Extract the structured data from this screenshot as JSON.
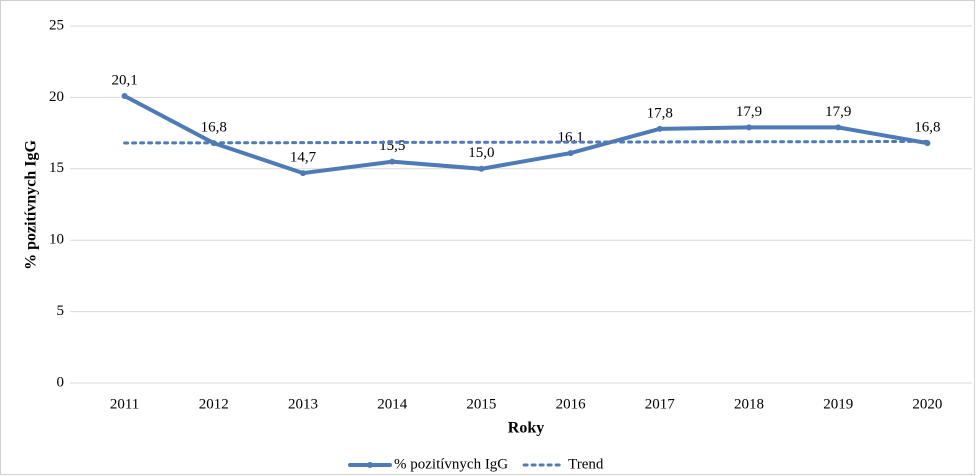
{
  "chart_data": {
    "type": "line",
    "categories": [
      "2011",
      "2012",
      "2013",
      "2014",
      "2015",
      "2016",
      "2017",
      "2018",
      "2019",
      "2020"
    ],
    "series": [
      {
        "name": "% pozitívnych IgG",
        "color": "#4e7ab5",
        "style": "solid",
        "values": [
          20.1,
          16.8,
          14.7,
          15.5,
          15.0,
          16.1,
          17.8,
          17.9,
          17.9,
          16.8
        ],
        "value_labels": [
          "20,1",
          "16,8",
          "14,7",
          "15,5",
          "15,0",
          "16,1",
          "17,8",
          "17,9",
          "17,9",
          "16,8"
        ]
      },
      {
        "name": "Trend",
        "color": "#4e7ab5",
        "style": "dotted",
        "values": [
          16.81,
          16.82,
          16.83,
          16.85,
          16.86,
          16.87,
          16.88,
          16.89,
          16.9,
          16.92
        ]
      }
    ],
    "x_label": "Roky",
    "y_label": "% pozitívnych IgG",
    "ylim": [
      0,
      25
    ],
    "yticks": [
      0,
      5,
      10,
      15,
      20,
      25
    ],
    "grid": true,
    "legend": "bottom"
  }
}
